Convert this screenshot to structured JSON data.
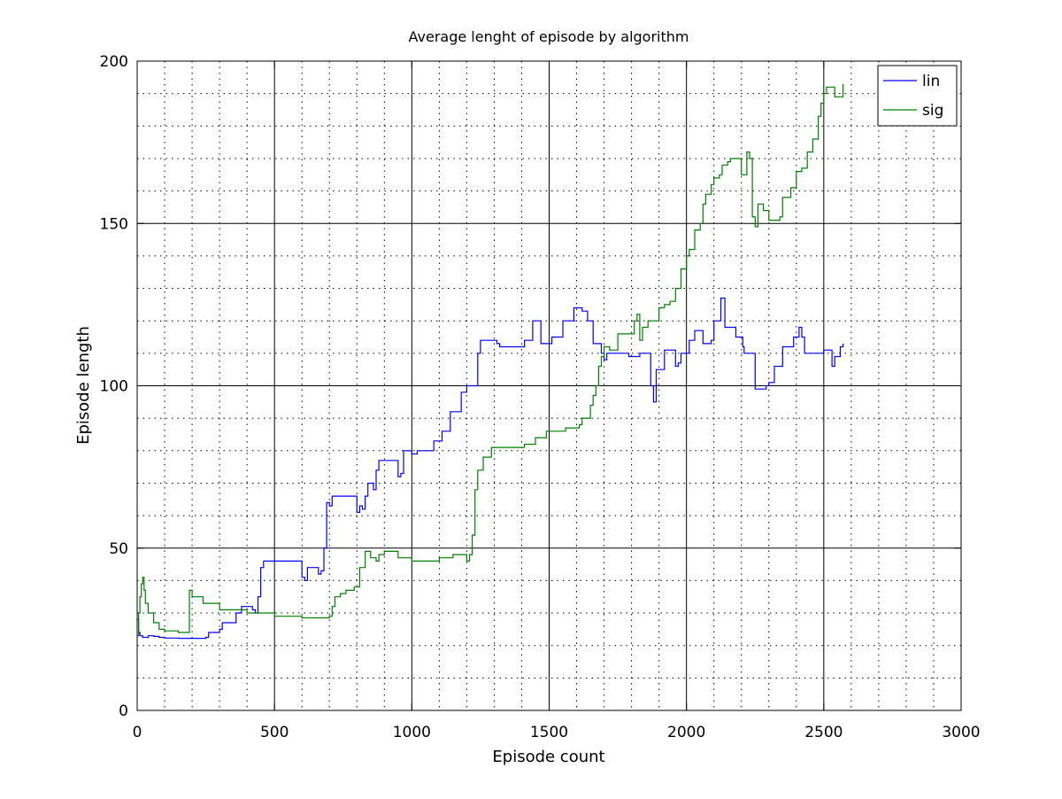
{
  "chart_data": {
    "type": "line",
    "title": "Average lenght of episode by algorithm",
    "xlabel": "Episode count",
    "ylabel": "Episode length",
    "xlim": [
      0,
      3000
    ],
    "ylim": [
      0,
      200
    ],
    "xticks": [
      0,
      500,
      1000,
      1500,
      2000,
      2500,
      3000
    ],
    "yticks": [
      0,
      50,
      100,
      150,
      200
    ],
    "major_grid": true,
    "minor_grid": true,
    "legend": "top-right",
    "series": [
      {
        "name": "lin",
        "color": "#0000ff",
        "points": [
          [
            0,
            28
          ],
          [
            5,
            24
          ],
          [
            10,
            23
          ],
          [
            20,
            22.5
          ],
          [
            40,
            23
          ],
          [
            60,
            22.8
          ],
          [
            80,
            22.5
          ],
          [
            100,
            22.3
          ],
          [
            150,
            22.2
          ],
          [
            200,
            22.2
          ],
          [
            250,
            22.5
          ],
          [
            260,
            24
          ],
          [
            300,
            25
          ],
          [
            310,
            27
          ],
          [
            350,
            27
          ],
          [
            360,
            30
          ],
          [
            380,
            32
          ],
          [
            420,
            31
          ],
          [
            430,
            30
          ],
          [
            440,
            35
          ],
          [
            450,
            44
          ],
          [
            460,
            46
          ],
          [
            600,
            41
          ],
          [
            610,
            40
          ],
          [
            620,
            44
          ],
          [
            660,
            42
          ],
          [
            670,
            43
          ],
          [
            680,
            50
          ],
          [
            690,
            64
          ],
          [
            700,
            63
          ],
          [
            710,
            66
          ],
          [
            800,
            61
          ],
          [
            810,
            63
          ],
          [
            820,
            62
          ],
          [
            830,
            66
          ],
          [
            840,
            70
          ],
          [
            860,
            68
          ],
          [
            870,
            74
          ],
          [
            880,
            77
          ],
          [
            950,
            72
          ],
          [
            960,
            73
          ],
          [
            970,
            80
          ],
          [
            1000,
            79
          ],
          [
            1020,
            80
          ],
          [
            1070,
            80
          ],
          [
            1080,
            83
          ],
          [
            1100,
            83
          ],
          [
            1110,
            86
          ],
          [
            1130,
            86
          ],
          [
            1140,
            92
          ],
          [
            1170,
            92
          ],
          [
            1180,
            98
          ],
          [
            1200,
            100
          ],
          [
            1230,
            100
          ],
          [
            1240,
            110
          ],
          [
            1250,
            114
          ],
          [
            1310,
            113
          ],
          [
            1320,
            112
          ],
          [
            1400,
            112
          ],
          [
            1410,
            114
          ],
          [
            1430,
            114
          ],
          [
            1440,
            120
          ],
          [
            1460,
            120
          ],
          [
            1470,
            113
          ],
          [
            1500,
            113
          ],
          [
            1510,
            115
          ],
          [
            1540,
            115
          ],
          [
            1550,
            120
          ],
          [
            1580,
            120
          ],
          [
            1590,
            124
          ],
          [
            1610,
            124
          ],
          [
            1620,
            123
          ],
          [
            1630,
            123
          ],
          [
            1640,
            120
          ],
          [
            1650,
            120
          ],
          [
            1660,
            113
          ],
          [
            1680,
            113
          ],
          [
            1690,
            110
          ],
          [
            1700,
            108
          ],
          [
            1710,
            110
          ],
          [
            1780,
            110
          ],
          [
            1790,
            109
          ],
          [
            1820,
            109
          ],
          [
            1830,
            110
          ],
          [
            1860,
            110
          ],
          [
            1870,
            100
          ],
          [
            1880,
            95
          ],
          [
            1890,
            105
          ],
          [
            1910,
            105
          ],
          [
            1920,
            111
          ],
          [
            1950,
            111
          ],
          [
            1960,
            106
          ],
          [
            1970,
            107
          ],
          [
            1980,
            110
          ],
          [
            2000,
            110
          ],
          [
            2010,
            114
          ],
          [
            2030,
            117
          ],
          [
            2050,
            117
          ],
          [
            2060,
            113
          ],
          [
            2080,
            113
          ],
          [
            2090,
            114
          ],
          [
            2100,
            120
          ],
          [
            2120,
            120
          ],
          [
            2125,
            127
          ],
          [
            2140,
            118
          ],
          [
            2170,
            118
          ],
          [
            2180,
            115
          ],
          [
            2190,
            115
          ],
          [
            2200,
            115
          ],
          [
            2205,
            112
          ],
          [
            2210,
            110
          ],
          [
            2220,
            110
          ],
          [
            2240,
            110
          ],
          [
            2250,
            99
          ],
          [
            2290,
            100
          ],
          [
            2300,
            101
          ],
          [
            2310,
            101
          ],
          [
            2320,
            106
          ],
          [
            2340,
            106
          ],
          [
            2350,
            112
          ],
          [
            2380,
            112
          ],
          [
            2390,
            115
          ],
          [
            2400,
            115
          ],
          [
            2410,
            118
          ],
          [
            2420,
            115
          ],
          [
            2430,
            110
          ],
          [
            2490,
            110
          ],
          [
            2500,
            111
          ],
          [
            2520,
            111
          ],
          [
            2530,
            106
          ],
          [
            2540,
            109
          ],
          [
            2550,
            109
          ],
          [
            2560,
            112
          ],
          [
            2570,
            113
          ]
        ]
      },
      {
        "name": "sig",
        "color": "#007f00",
        "points": [
          [
            0,
            23
          ],
          [
            5,
            30
          ],
          [
            10,
            35
          ],
          [
            15,
            39
          ],
          [
            20,
            41
          ],
          [
            25,
            37
          ],
          [
            30,
            33
          ],
          [
            40,
            30
          ],
          [
            60,
            27
          ],
          [
            80,
            25
          ],
          [
            100,
            24.5
          ],
          [
            150,
            24
          ],
          [
            180,
            24
          ],
          [
            190,
            37
          ],
          [
            200,
            35
          ],
          [
            240,
            33
          ],
          [
            300,
            31
          ],
          [
            400,
            30
          ],
          [
            500,
            29
          ],
          [
            600,
            28.5
          ],
          [
            650,
            28.5
          ],
          [
            700,
            29
          ],
          [
            710,
            32
          ],
          [
            720,
            35
          ],
          [
            740,
            36
          ],
          [
            760,
            37
          ],
          [
            790,
            38
          ],
          [
            810,
            44
          ],
          [
            830,
            49
          ],
          [
            850,
            47
          ],
          [
            870,
            46
          ],
          [
            880,
            48
          ],
          [
            900,
            49
          ],
          [
            950,
            47
          ],
          [
            1000,
            46
          ],
          [
            1050,
            46
          ],
          [
            1100,
            47
          ],
          [
            1150,
            48
          ],
          [
            1190,
            48
          ],
          [
            1200,
            46
          ],
          [
            1210,
            48
          ],
          [
            1220,
            54
          ],
          [
            1230,
            68
          ],
          [
            1240,
            74
          ],
          [
            1260,
            78
          ],
          [
            1280,
            78
          ],
          [
            1290,
            81
          ],
          [
            1400,
            81
          ],
          [
            1410,
            82
          ],
          [
            1440,
            82
          ],
          [
            1450,
            84
          ],
          [
            1480,
            84
          ],
          [
            1490,
            86
          ],
          [
            1550,
            86
          ],
          [
            1560,
            87
          ],
          [
            1600,
            87
          ],
          [
            1610,
            88
          ],
          [
            1620,
            90
          ],
          [
            1640,
            90
          ],
          [
            1650,
            94
          ],
          [
            1660,
            97
          ],
          [
            1670,
            100
          ],
          [
            1680,
            106
          ],
          [
            1690,
            109
          ],
          [
            1700,
            112
          ],
          [
            1710,
            112
          ],
          [
            1720,
            111
          ],
          [
            1740,
            111
          ],
          [
            1750,
            116
          ],
          [
            1800,
            116
          ],
          [
            1810,
            120
          ],
          [
            1820,
            122
          ],
          [
            1830,
            114
          ],
          [
            1840,
            118
          ],
          [
            1850,
            118
          ],
          [
            1860,
            120
          ],
          [
            1890,
            120
          ],
          [
            1900,
            124
          ],
          [
            1920,
            125
          ],
          [
            1940,
            126
          ],
          [
            1960,
            130
          ],
          [
            1980,
            136
          ],
          [
            2000,
            140
          ],
          [
            2010,
            142
          ],
          [
            2030,
            148
          ],
          [
            2050,
            150
          ],
          [
            2060,
            156
          ],
          [
            2070,
            159
          ],
          [
            2090,
            162
          ],
          [
            2100,
            164
          ],
          [
            2120,
            165
          ],
          [
            2130,
            168
          ],
          [
            2150,
            169
          ],
          [
            2160,
            170
          ],
          [
            2180,
            170
          ],
          [
            2200,
            165
          ],
          [
            2220,
            172
          ],
          [
            2230,
            170
          ],
          [
            2240,
            152
          ],
          [
            2250,
            149
          ],
          [
            2260,
            156
          ],
          [
            2280,
            154
          ],
          [
            2300,
            151
          ],
          [
            2340,
            152
          ],
          [
            2350,
            158
          ],
          [
            2380,
            161
          ],
          [
            2400,
            166
          ],
          [
            2420,
            167
          ],
          [
            2440,
            172
          ],
          [
            2460,
            176
          ],
          [
            2480,
            183
          ],
          [
            2490,
            187
          ],
          [
            2500,
            190
          ],
          [
            2510,
            192
          ],
          [
            2530,
            192
          ],
          [
            2540,
            189
          ],
          [
            2560,
            189
          ],
          [
            2570,
            193
          ]
        ]
      }
    ]
  }
}
